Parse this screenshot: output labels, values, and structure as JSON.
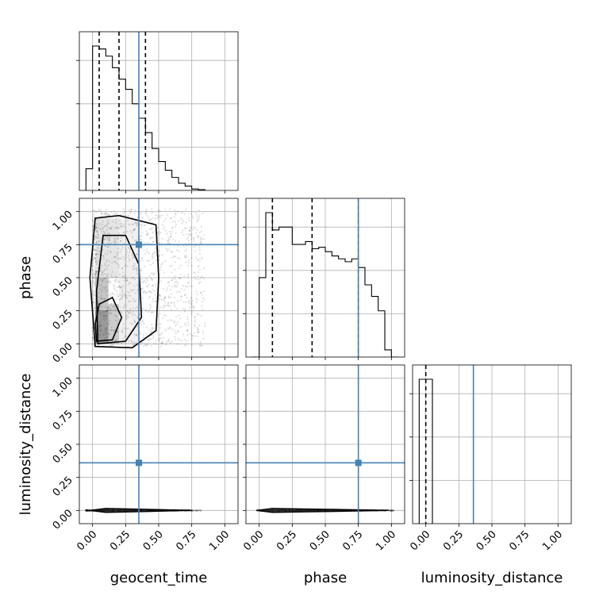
{
  "chart_data": {
    "type": "corner",
    "parameters": [
      "geocent_time",
      "phase",
      "luminosity_distance"
    ],
    "xlabels": [
      "geocent_time",
      "phase",
      "luminosity_distance"
    ],
    "ylabels": [
      "",
      "phase",
      "luminosity_distance"
    ],
    "tick_values": [
      0.0,
      0.25,
      0.5,
      0.75,
      1.0
    ],
    "tick_labels": [
      "0.00",
      "0.25",
      "0.50",
      "0.75",
      "1.00"
    ],
    "axis_range": [
      -0.1,
      1.1
    ],
    "grid": true,
    "truths": {
      "geocent_time": 0.35,
      "phase": 0.75,
      "luminosity_distance": 0.36
    },
    "truth_color": "#4682b4",
    "quantiles": {
      "geocent_time": [
        0.05,
        0.2,
        0.4
      ],
      "phase": [
        0.1,
        0.4,
        0.75
      ],
      "luminosity_distance": [
        0.0
      ]
    },
    "histograms": {
      "geocent_time": {
        "bin_edges": [
          -0.05,
          0.0,
          0.05,
          0.1,
          0.15,
          0.2,
          0.25,
          0.3,
          0.35,
          0.4,
          0.45,
          0.5,
          0.55,
          0.6,
          0.65,
          0.7,
          0.75,
          0.8,
          0.85
        ],
        "counts": [
          0.15,
          1.0,
          0.98,
          0.93,
          0.85,
          0.77,
          0.7,
          0.6,
          0.5,
          0.4,
          0.29,
          0.2,
          0.14,
          0.09,
          0.05,
          0.03,
          0.01,
          0.005
        ]
      },
      "phase": {
        "bin_edges": [
          -0.05,
          0.0,
          0.05,
          0.1,
          0.15,
          0.2,
          0.25,
          0.3,
          0.35,
          0.4,
          0.45,
          0.5,
          0.55,
          0.6,
          0.65,
          0.7,
          0.75,
          0.8,
          0.85,
          0.9,
          0.95,
          1.0,
          1.05
        ],
        "counts": [
          0.0,
          0.55,
          1.0,
          0.88,
          0.9,
          0.9,
          0.78,
          0.78,
          0.8,
          0.75,
          0.76,
          0.73,
          0.7,
          0.68,
          0.66,
          0.68,
          0.62,
          0.5,
          0.42,
          0.32,
          0.05,
          0.0
        ]
      },
      "luminosity_distance": {
        "bin_edges": [
          -0.05,
          0.0,
          0.05
        ],
        "counts": [
          1.0,
          1.0
        ]
      }
    },
    "scatter_panels": [
      {
        "x": "geocent_time",
        "y": "phase",
        "points_spread": {
          "x": [
            0.0,
            0.85
          ],
          "y": [
            -0.02,
            1.02
          ]
        }
      },
      {
        "x": "geocent_time",
        "y": "luminosity_distance",
        "points_spread": {
          "x": [
            -0.05,
            0.82
          ],
          "y": [
            -0.02,
            0.02
          ]
        }
      },
      {
        "x": "phase",
        "y": "luminosity_distance",
        "points_spread": {
          "x": [
            -0.02,
            1.02
          ],
          "y": [
            -0.02,
            0.02
          ]
        }
      }
    ]
  }
}
